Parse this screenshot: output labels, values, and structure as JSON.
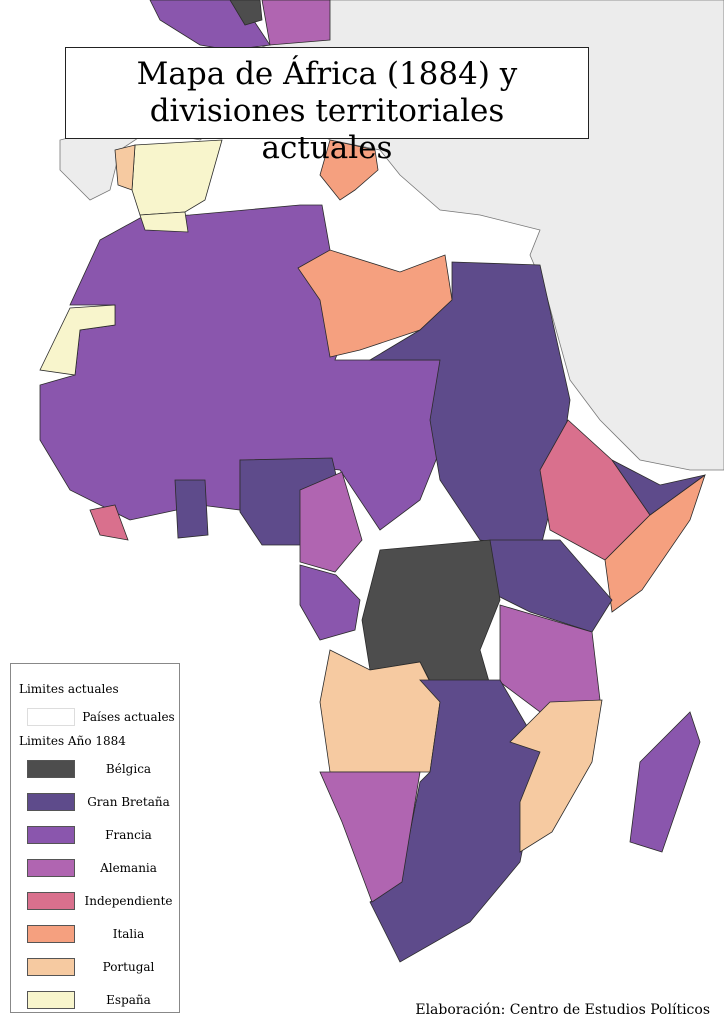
{
  "title": "Mapa de África (1884) y divisiones territoriales actuales",
  "legend": {
    "current_heading": "Limites actuales",
    "current_item": {
      "label": "Países actuales",
      "color": "#ffffff"
    },
    "historic_heading": "Limites Año 1884",
    "items": [
      {
        "label": "Bélgica",
        "color": "#4d4d4d"
      },
      {
        "label": "Gran Bretaña",
        "color": "#5e4b8b"
      },
      {
        "label": "Francia",
        "color": "#8a56ad"
      },
      {
        "label": "Alemania",
        "color": "#b065b1"
      },
      {
        "label": "Independiente",
        "color": "#d9708d"
      },
      {
        "label": "Italia",
        "color": "#f5a07f"
      },
      {
        "label": "Portugal",
        "color": "#f6caa1"
      },
      {
        "label": "España",
        "color": "#f8f5cc"
      }
    ]
  },
  "credit": "Elaboración: Centro de Estudios Políticos"
}
